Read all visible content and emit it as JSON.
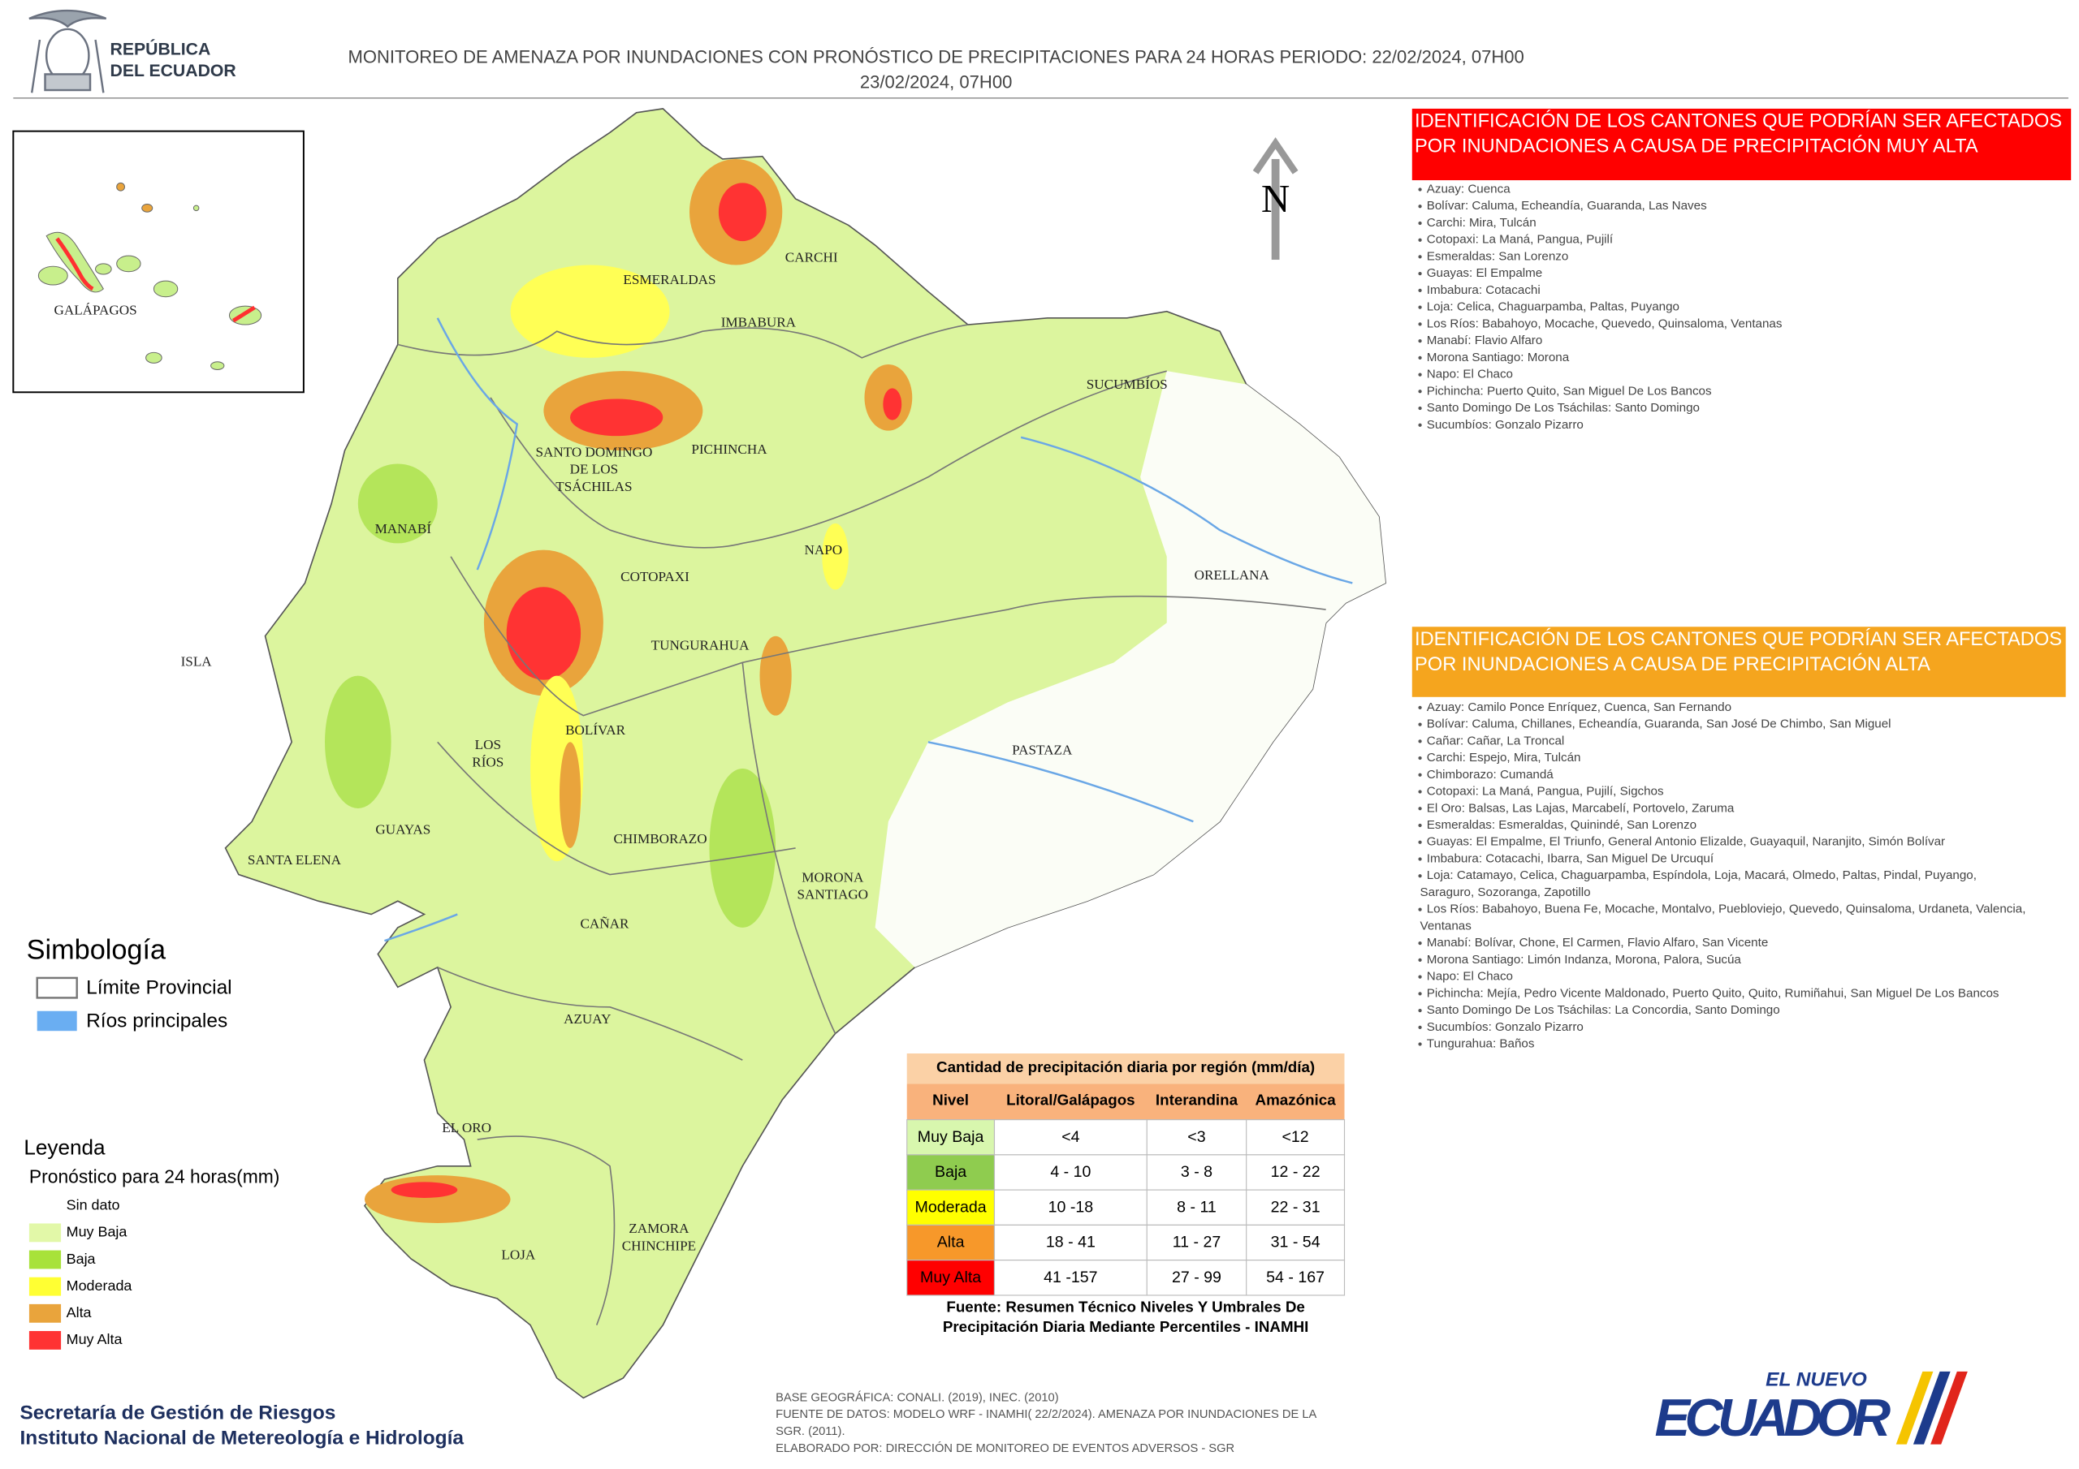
{
  "header": {
    "logo": [
      "REPÚBLICA",
      "DEL ECUADOR"
    ],
    "title": [
      "MONITOREO DE AMENAZA POR INUNDACIONES  CON PRONÓSTICO DE  PRECIPITACIONES PARA 24 HORAS  PERIODO: 22/02/2024, 07H00",
      "23/02/2024, 07H00"
    ]
  },
  "map": {
    "north": "N",
    "inset_label": "GALÁPAGOS",
    "provinces": [
      [
        "ESMERALDAS"
      ],
      [
        "CARCHI"
      ],
      [
        "IMBABURA"
      ],
      [
        "SUCUMBÍOS"
      ],
      [
        "PICHINCHA"
      ],
      [
        "SANTO DOMINGO",
        "DE LOS",
        "TSÁCHILAS"
      ],
      [
        "MANABÍ"
      ],
      [
        "NAPO"
      ],
      [
        "ORELLANA"
      ],
      [
        "COTOPAXI"
      ],
      [
        "ISLA"
      ],
      [
        "TUNGURAHUA"
      ],
      [
        "BOLÍVAR"
      ],
      [
        "LOS",
        "RÍOS"
      ],
      [
        "PASTAZA"
      ],
      [
        "GUAYAS"
      ],
      [
        "SANTA ELENA"
      ],
      [
        "CHIMBORAZO"
      ],
      [
        "MORONA",
        "SANTIAGO"
      ],
      [
        "CAÑAR"
      ],
      [
        "AZUAY"
      ],
      [
        "EL ORO"
      ],
      [
        "LOJA"
      ],
      [
        "ZAMORA",
        "CHINCHIPE"
      ]
    ]
  },
  "panel_very_high": {
    "title": [
      "IDENTIFICACIÓN DE LOS CANTONES QUE PODRÍAN SER AFECTADOS",
      "POR INUNDACIONES  A CAUSA DE PRECIPITACIÓN MUY ALTA"
    ],
    "items": [
      [
        "Azuay: Cuenca"
      ],
      [
        "Bolívar: Caluma, Echeandía, Guaranda, Las Naves"
      ],
      [
        "Carchi: Mira, Tulcán"
      ],
      [
        "Cotopaxi: La Maná, Pangua, Pujilí"
      ],
      [
        "Esmeraldas: San Lorenzo"
      ],
      [
        "Guayas: El Empalme"
      ],
      [
        "Imbabura: Cotacachi"
      ],
      [
        "Loja: Celica, Chaguarpamba, Paltas, Puyango"
      ],
      [
        "Los Ríos: Babahoyo, Mocache, Quevedo, Quinsaloma, Ventanas"
      ],
      [
        "Manabí: Flavio Alfaro"
      ],
      [
        "Morona Santiago: Morona"
      ],
      [
        "Napo: El Chaco"
      ],
      [
        "Pichincha: Puerto Quito, San Miguel De Los Bancos"
      ],
      [
        "Santo Domingo De Los Tsáchilas: Santo Domingo"
      ],
      [
        "Sucumbíos: Gonzalo Pizarro"
      ]
    ]
  },
  "panel_high": {
    "title": [
      "IDENTIFICACIÓN DE LOS CANTONES QUE  PODRÍAN SER AFECTADOS",
      "POR INUNDACIONES  A CAUSA DE PRECIPITACIÓN  ALTA"
    ],
    "items": [
      [
        "Azuay: Camilo Ponce Enríquez, Cuenca, San Fernando"
      ],
      [
        "Bolívar: Caluma, Chillanes, Echeandía, Guaranda, San José De Chimbo, San Miguel"
      ],
      [
        "Cañar: Cañar, La Troncal"
      ],
      [
        "Carchi: Espejo, Mira, Tulcán"
      ],
      [
        "Chimborazo: Cumandá"
      ],
      [
        "Cotopaxi: La Maná, Pangua, Pujilí, Sigchos"
      ],
      [
        "El Oro: Balsas, Las Lajas, Marcabelí, Portovelo, Zaruma"
      ],
      [
        "Esmeraldas: Esmeraldas, Quinindé, San Lorenzo"
      ],
      [
        "Guayas: El Empalme, El Triunfo, General Antonio Elizalde, Guayaquil, Naranjito, Simón Bolívar"
      ],
      [
        "Imbabura: Cotacachi, Ibarra, San Miguel De Urcuquí"
      ],
      [
        "Loja: Catamayo, Celica, Chaguarpamba, Espíndola, Loja, Macará, Olmedo, Paltas, Pindal, Puyango,",
        "Saraguro, Sozoranga, Zapotillo"
      ],
      [
        "Los Ríos: Babahoyo, Buena Fe, Mocache, Montalvo, Puebloviejo, Quevedo, Quinsaloma, Urdaneta, Valencia,",
        "Ventanas"
      ],
      [
        "Manabí: Bolívar, Chone, El Carmen, Flavio Alfaro, San Vicente"
      ],
      [
        "Morona Santiago: Limón Indanza, Morona, Palora, Sucúa"
      ],
      [
        "Napo: El Chaco"
      ],
      [
        "Pichincha: Mejía, Pedro Vicente Maldonado, Puerto Quito, Quito, Rumiñahui, San Miguel De Los Bancos"
      ],
      [
        "Santo Domingo De Los Tsáchilas: La Concordia, Santo Domingo"
      ],
      [
        "Sucumbíos: Gonzalo Pizarro"
      ],
      [
        "Tungurahua: Baños"
      ]
    ]
  },
  "symbology": {
    "title": "Simbología",
    "items": [
      "Límite Provincial",
      "Ríos principales"
    ]
  },
  "legend": {
    "title": "Leyenda",
    "subtitle": "Pronóstico para 24 horas(mm)",
    "items": [
      {
        "label": "Sin dato",
        "color": "#ffffff"
      },
      {
        "label": "Muy Baja",
        "color": "#e2f8a8"
      },
      {
        "label": "Baja",
        "color": "#a8e23a"
      },
      {
        "label": "Moderada",
        "color": "#ffff33"
      },
      {
        "label": "Alta",
        "color": "#e9a43c"
      },
      {
        "label": "Muy Alta",
        "color": "#ff3333"
      }
    ]
  },
  "table": {
    "title": "Cantidad de precipitación diaria por región (mm/día)",
    "header": [
      "Nivel",
      "Litoral/Galápagos",
      "Interandina",
      "Amazónica"
    ],
    "rows": [
      [
        "Muy Baja",
        "<4",
        "<3",
        "<12"
      ],
      [
        "Baja",
        "4 - 10",
        "3 - 8",
        "12 - 22"
      ],
      [
        "Moderada",
        "10 -18",
        "8 - 11",
        "22 - 31"
      ],
      [
        "Alta",
        "18 - 41",
        "11 - 27",
        "31 - 54"
      ],
      [
        "Muy Alta",
        "41 -157",
        "27 - 99",
        "54 - 167"
      ]
    ],
    "row_colors": [
      "#d8f7ae",
      "#8fcc4f",
      "#ffff00",
      "#f7982a",
      "#ff0000"
    ],
    "source": [
      "Fuente: Resumen Técnico Niveles Y Umbrales De",
      "Precipitación Diaria Mediante Percentiles - INAMHI"
    ]
  },
  "footer": {
    "org": [
      "Secretaría de Gestión de Riesgos",
      "Instituto Nacional de Metereología e Hidrología"
    ],
    "credits": [
      "BASE GEOGRÁFICA: CONALI. (2019), INEC. (2010)",
      "FUENTE DE DATOS: MODELO WRF - INAMHI( 22/2/2024).  AMENAZA POR INUNDACIONES DE LA",
      "SGR. (2011).",
      "ELABORADO POR: DIRECCIÓN DE MONITOREO DE EVENTOS ADVERSOS - SGR"
    ],
    "brand": [
      "EL NUEVO",
      "ECUADOR"
    ]
  }
}
